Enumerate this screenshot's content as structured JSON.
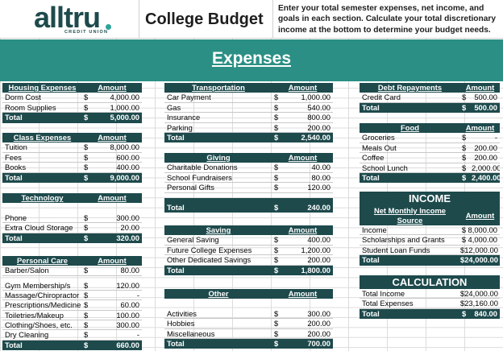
{
  "header": {
    "logo": "alltru",
    "logo_sub": "CREDIT UNION",
    "title": "College Budget",
    "instructions": "Enter your total semester expenses, net income, and goals in each section. Calculate your total discretionary income at the bottom to determine your budget needs."
  },
  "banner": {
    "title": "Expenses"
  },
  "colors": {
    "dark_teal": "#1e4a4c",
    "banner_teal": "#2b8f85"
  },
  "housing": {
    "title": "Housing Expenses",
    "amount": "Amount",
    "items": [
      {
        "label": "Dorm Cost",
        "sym": "$",
        "value": "4,000.00"
      },
      {
        "label": "Room Supplies",
        "sym": "$",
        "value": "1,000.00"
      }
    ],
    "total": {
      "label": "Total",
      "sym": "$",
      "value": "5,000.00"
    }
  },
  "class": {
    "title": "Class Expenses",
    "amount": "Amount",
    "items": [
      {
        "label": "Tuition",
        "sym": "$",
        "value": "8,000.00"
      },
      {
        "label": "Fees",
        "sym": "$",
        "value": "600.00"
      },
      {
        "label": "Books",
        "sym": "$",
        "value": "400.00"
      }
    ],
    "total": {
      "label": "Total",
      "sym": "$",
      "value": "9,000.00"
    }
  },
  "technology": {
    "title": "Technology",
    "amount": "Amount",
    "items": [
      {
        "label": "Phone",
        "sym": "$",
        "value": "300.00"
      },
      {
        "label": "Extra Cloud Storage",
        "sym": "$",
        "value": "20.00"
      }
    ],
    "total": {
      "label": "Total",
      "sym": "$",
      "value": "320.00"
    }
  },
  "personal": {
    "title": "Personal Care",
    "amount": "Amount",
    "items": [
      {
        "label": "Barber/Salon",
        "sym": "$",
        "value": "80.00"
      },
      {
        "label": "Gym Membership/s",
        "sym": "$",
        "value": "120.00"
      },
      {
        "label": "Massage/Chiropractor",
        "sym": "$",
        "value": "-"
      },
      {
        "label": "Prescriptions/Medicine",
        "sym": "$",
        "value": "60.00"
      },
      {
        "label": "Toiletries/Makeup",
        "sym": "$",
        "value": "100.00"
      },
      {
        "label": "Clothing/Shoes, etc.",
        "sym": "$",
        "value": "300.00"
      },
      {
        "label": "Dry Cleaning",
        "sym": "$",
        "value": "-"
      }
    ],
    "total": {
      "label": "Total",
      "sym": "$",
      "value": "660.00"
    }
  },
  "transportation": {
    "title": "Transportation",
    "amount": "Amount",
    "items": [
      {
        "label": "Car Payment",
        "sym": "$",
        "value": "1,000.00"
      },
      {
        "label": "Gas",
        "sym": "$",
        "value": "540.00"
      },
      {
        "label": "Insurance",
        "sym": "$",
        "value": "800.00"
      },
      {
        "label": "Parking",
        "sym": "$",
        "value": "200.00"
      }
    ],
    "total": {
      "label": "Total",
      "sym": "$",
      "value": "2,540.00"
    }
  },
  "giving": {
    "title": "Giving",
    "amount": "Amount",
    "items": [
      {
        "label": "Charitable Donations",
        "sym": "$",
        "value": "40.00"
      },
      {
        "label": "School Fundraisers",
        "sym": "$",
        "value": "80.00"
      },
      {
        "label": "Personal Gifts",
        "sym": "$",
        "value": "120.00"
      }
    ],
    "total": {
      "label": "Total",
      "sym": "$",
      "value": "240.00"
    }
  },
  "saving": {
    "title": "Saving",
    "amount": "Amount",
    "items": [
      {
        "label": "General Saving",
        "sym": "$",
        "value": "400.00"
      },
      {
        "label": "Future College Expenses",
        "sym": "$",
        "value": "1,200.00"
      },
      {
        "label": "Other Dedicated Savings",
        "sym": "$",
        "value": "200.00"
      }
    ],
    "total": {
      "label": "Total",
      "sym": "$",
      "value": "1,800.00"
    }
  },
  "other": {
    "title": "Other",
    "amount": "Amount",
    "items": [
      {
        "label": "Activities",
        "sym": "$",
        "value": "300.00"
      },
      {
        "label": "Hobbies",
        "sym": "$",
        "value": "200.00"
      },
      {
        "label": "Miscellaneous",
        "sym": "$",
        "value": "200.00"
      }
    ],
    "total": {
      "label": "Total",
      "sym": "$",
      "value": "700.00"
    }
  },
  "debt": {
    "title": "Debt Repayments",
    "amount": "Amount",
    "items": [
      {
        "label": "Credit Card",
        "sym": "$",
        "value": "500.00"
      }
    ],
    "total": {
      "label": "Total",
      "sym": "$",
      "value": "500.00"
    }
  },
  "food": {
    "title": "Food",
    "amount": "Amount",
    "items": [
      {
        "label": "Groceries",
        "sym": "$",
        "value": "-"
      },
      {
        "label": "Meals Out",
        "sym": "$",
        "value": "200.00"
      },
      {
        "label": "Coffee",
        "sym": "$",
        "value": "200.00"
      },
      {
        "label": "School Lunch",
        "sym": "$",
        "value": "2,000.00"
      }
    ],
    "total": {
      "label": "Total",
      "sym": "$",
      "value": "2,400.00"
    }
  },
  "income": {
    "section_title": "INCOME",
    "title": "Net Monthly Income Source",
    "amount": "Amount",
    "items": [
      {
        "label": "Income",
        "value": "$  8,000.00"
      },
      {
        "label": "Scholarships and Grants",
        "value": "$  4,000.00"
      },
      {
        "label": "Student Loan Funds",
        "value": "$12,000.00"
      }
    ],
    "total": {
      "label": "Total",
      "value": "$24,000.00"
    }
  },
  "calculation": {
    "section_title": "CALCULATION",
    "items": [
      {
        "label": "Total Income",
        "value": "$24,000.00"
      },
      {
        "label": "Total Expenses",
        "value": "$23,160.00"
      }
    ],
    "total": {
      "label": "Total",
      "sym": "$",
      "value": "840.00"
    }
  }
}
